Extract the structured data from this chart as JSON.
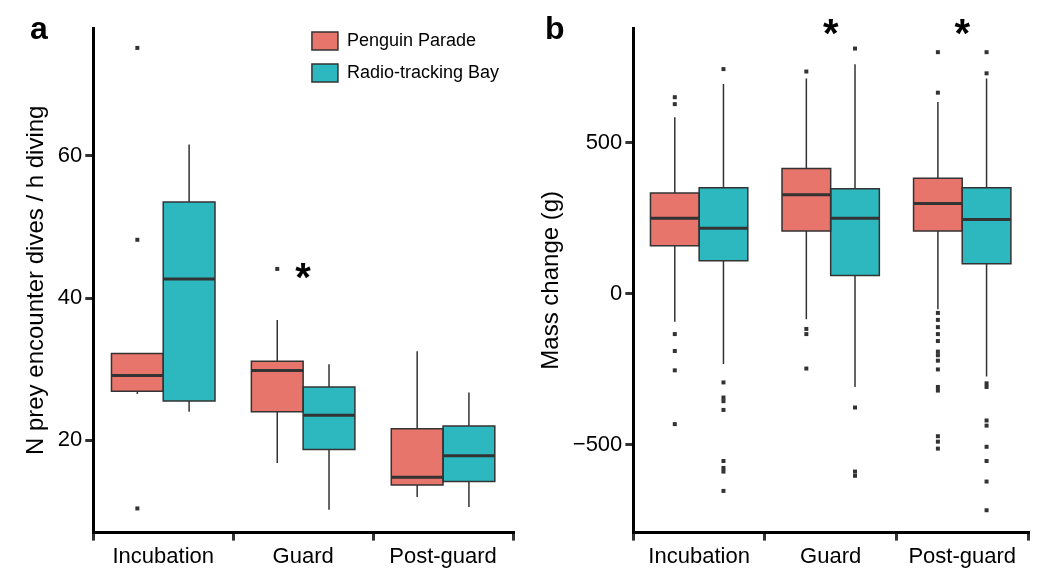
{
  "chart_data": [
    {
      "type": "box",
      "categories": [
        "Incubation",
        "Guard",
        "Post-guard"
      ],
      "ylabel": "N prey encounter dives / h diving",
      "ylim": [
        7,
        78
      ],
      "yticks": [
        20,
        40,
        60
      ],
      "legend": "top right",
      "series": [
        {
          "name": "Penguin Parade",
          "color": "#e8756c",
          "boxes": [
            {
              "low": 26.5,
              "q1": 26.9,
              "median": 29.1,
              "q3": 32.2,
              "high": 32.2,
              "outliers": [
                75.2,
                48.2,
                10.4
              ]
            },
            {
              "low": 16.8,
              "q1": 24.0,
              "median": 29.8,
              "q3": 31.1,
              "high": 36.9,
              "outliers": [
                44.1
              ]
            },
            {
              "low": 12.0,
              "q1": 13.7,
              "median": 14.8,
              "q3": 21.6,
              "high": 32.5
            }
          ]
        },
        {
          "name": "Radio-tracking Bay",
          "color": "#2db8bf",
          "boxes": [
            {
              "low": 24.0,
              "q1": 25.5,
              "median": 42.7,
              "q3": 53.5,
              "high": 61.6
            },
            {
              "low": 10.2,
              "q1": 18.7,
              "median": 23.5,
              "q3": 27.5,
              "high": 30.7
            },
            {
              "low": 10.6,
              "q1": 14.2,
              "median": 17.8,
              "q3": 22.0,
              "high": 26.7
            }
          ]
        }
      ],
      "annotations": [
        "a",
        "*"
      ]
    },
    {
      "type": "box",
      "categories": [
        "Incubation",
        "Guard",
        "Post-guard"
      ],
      "ylabel": "Mass change (g)",
      "ylim": [
        -790,
        880
      ],
      "yticks": [
        {
          "value": -500,
          "label": "−500"
        },
        0,
        500
      ],
      "series": [
        {
          "color": "#e8756c",
          "boxes": [
            {
              "low": -92,
              "q1": 159,
              "median": 250,
              "q3": 334,
              "high": 585,
              "outliers": [
                651,
                628,
                -133,
                -189,
                -253,
                -431
              ]
            },
            {
              "low": -84,
              "q1": 208,
              "median": 328,
              "q3": 415,
              "high": 713,
              "outliers": [
                736,
                -116,
                -133,
                -247
              ]
            },
            {
              "low": -51,
              "q1": 208,
              "median": 299,
              "q3": 383,
              "high": 635,
              "outliers": [
                800,
                666,
                -63,
                -86,
                -110,
                -133,
                -156,
                -191,
                -203,
                -221,
                -250,
                -308,
                -320,
                -471,
                -489,
                -512
              ]
            }
          ]
        },
        {
          "color": "#2db8bf",
          "boxes": [
            {
              "low": -232,
              "q1": 110,
              "median": 217,
              "q3": 351,
              "high": 695,
              "outliers": [
                744,
                -293,
                -343,
                -355,
                -384,
                -553,
                -576,
                -588,
                -652
              ]
            },
            {
              "low": -308,
              "q1": 61,
              "median": 250,
              "q3": 348,
              "high": 760,
              "outliers": [
                812,
                -376,
                -588,
                -602
              ]
            },
            {
              "low": -273,
              "q1": 100,
              "median": 246,
              "q3": 351,
              "high": 713,
              "outliers": [
                800,
                730,
                -296,
                -308,
                -419,
                -436,
                -506,
                -553,
                -621,
                -716
              ]
            }
          ]
        }
      ],
      "annotations": [
        "b",
        "*",
        "*"
      ]
    }
  ]
}
